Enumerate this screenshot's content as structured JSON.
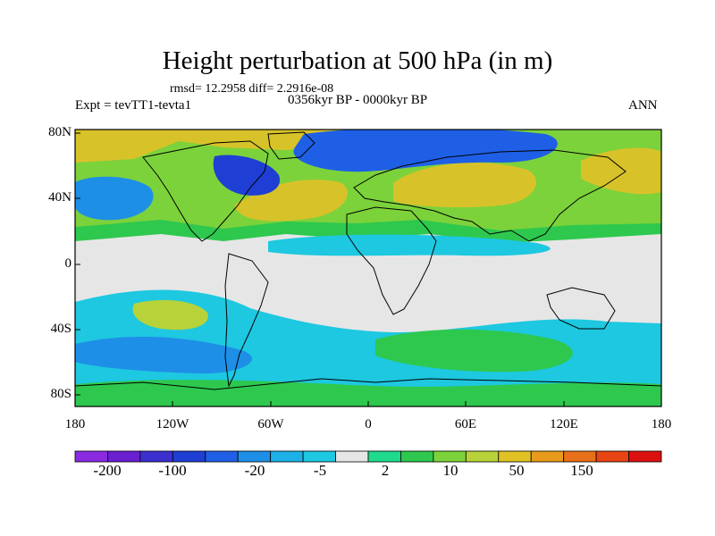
{
  "title": "Height perturbation at 500 hPa (in m)",
  "stats": "rmsd= 12.2958 diff= 2.2916e-08",
  "experiment": "Expt = tevTT1-tevta1",
  "period": "0356kyr BP - 0000kyr BP",
  "season": "ANN",
  "lat_labels": [
    "80N",
    "40N",
    "0",
    "40S",
    "80S"
  ],
  "lon_labels": [
    "180",
    "120W",
    "60W",
    "0",
    "60E",
    "120E",
    "180"
  ],
  "colorbar": {
    "colors": [
      "#8a2be2",
      "#6a1fd0",
      "#3b2fcf",
      "#1f3fd4",
      "#1f5fe6",
      "#1e8fe6",
      "#1cb0e6",
      "#1dc8e0",
      "#e6e6e6",
      "#1fd98c",
      "#2ec84e",
      "#7cd23a",
      "#b8d23a",
      "#e0c224",
      "#e89a1a",
      "#e87018",
      "#e84414",
      "#dd1010"
    ],
    "labels": [
      "-200",
      "-100",
      "-20",
      "-5",
      "2",
      "10",
      "50",
      "150"
    ]
  },
  "chart_data": {
    "type": "contour-map",
    "variable": "Height perturbation at 500 hPa",
    "units": "m",
    "projection": "cylindrical equidistant",
    "lon_range": [
      -180,
      180
    ],
    "lat_range": [
      -90,
      90
    ],
    "contour_levels": [
      -200,
      -150,
      -100,
      -50,
      -20,
      -10,
      -5,
      -2,
      2,
      5,
      10,
      20,
      50,
      100,
      150,
      200
    ]
  }
}
